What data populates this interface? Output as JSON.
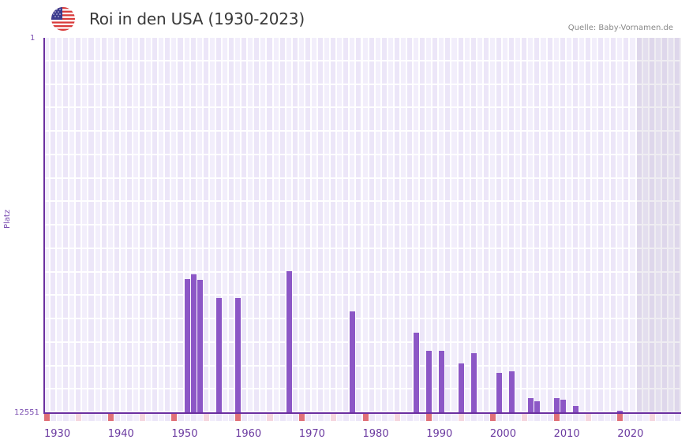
{
  "header": {
    "flag_icon": "us-flag-icon",
    "title": "Roi in den USA (1930-2023)",
    "source": "Quelle: Baby-Vornamen.de"
  },
  "axis": {
    "y_top": "1",
    "y_bottom": "12551",
    "y_title": "Platz",
    "x_ticks": [
      "1930",
      "1940",
      "1950",
      "1960",
      "1970",
      "1980",
      "1990",
      "2000",
      "2010",
      "2020"
    ]
  },
  "colors": {
    "bar": "#8c57c6",
    "axis": "#6b2fa0",
    "grid_a": "#f2eefb",
    "grid_b": "#ece6f8",
    "marker_strong": "#e07078",
    "marker_light": "#f5d6de"
  },
  "chart_data": {
    "type": "bar",
    "title": "Roi in den USA (1930-2023)",
    "xlabel": "",
    "ylabel": "Platz",
    "y_inverted": true,
    "ylim": [
      12551,
      1
    ],
    "x_range": [
      1930,
      2029
    ],
    "x": [
      1952,
      1953,
      1954,
      1957,
      1960,
      1968,
      1978,
      1988,
      1990,
      1992,
      1995,
      1997,
      2001,
      2003,
      2006,
      2007,
      2008,
      2009,
      2010,
      2011,
      2012,
      2013,
      2014,
      2015,
      2016,
      2017,
      2018,
      2019,
      2020,
      2021,
      2022
    ],
    "values": [
      8060,
      7900,
      8100,
      8700,
      8700,
      7800,
      9150,
      9870,
      10480,
      10480,
      10890,
      10560,
      11210,
      11160,
      12060,
      12150,
      12860,
      12600,
      12060,
      12110,
      12610,
      12320,
      12760,
      12560,
      12690,
      12560,
      12620,
      12880,
      12480,
      12880,
      12790
    ],
    "legend": [],
    "grid": true,
    "annotation": "shaded region after 2022 (incomplete/future years)"
  }
}
